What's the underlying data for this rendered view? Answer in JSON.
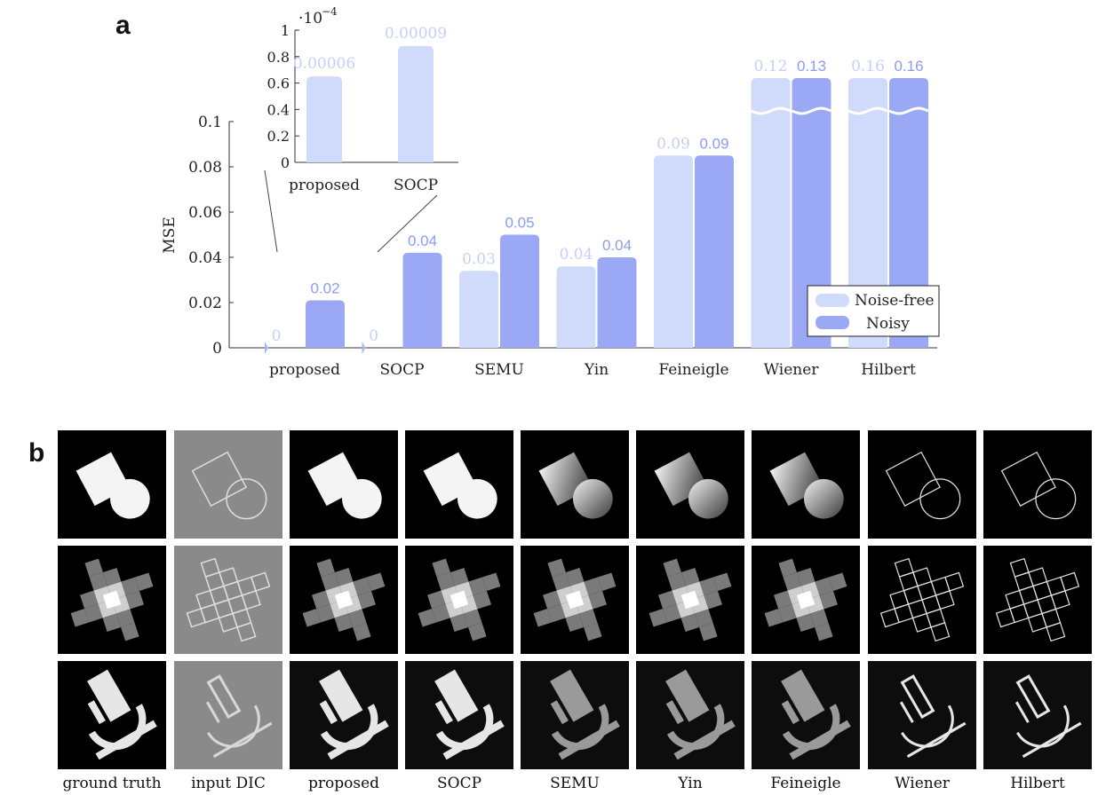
{
  "panel_a_label": "a",
  "panel_b_label": "b",
  "chart_data": [
    {
      "type": "bar",
      "categories": [
        "proposed",
        "SOCP",
        "SEMU",
        "Yin",
        "Feineigle",
        "Wiener",
        "Hilbert"
      ],
      "series": [
        {
          "name": "Noise-free",
          "values": [
            6e-05,
            9e-05,
            0.034,
            0.036,
            0.085,
            0.12,
            0.16
          ],
          "labels": [
            "0",
            "0",
            "0.03",
            "0.04",
            "0.09",
            "0.12",
            "0.16"
          ]
        },
        {
          "name": "Noisy",
          "values": [
            0.021,
            0.042,
            0.05,
            0.04,
            0.085,
            0.13,
            0.16
          ],
          "labels": [
            "0.02",
            "0.04",
            "0.05",
            "0.04",
            "0.09",
            "0.13",
            "0.16"
          ]
        }
      ],
      "ylabel": "MSE",
      "xlabel": "",
      "ylim": [
        0,
        0.1
      ],
      "yticks": [
        "0",
        "0.02",
        "0.04",
        "0.06",
        "0.08",
        "0.1"
      ],
      "axis_break": "Wiener and Hilbert bars exceed the axis (broken bars)",
      "legend_position": "bottom-right",
      "colors": {
        "noise_free": "#d0dbfb",
        "noisy": "#9aa8f5",
        "label_noise_free": "#c5d0f7",
        "label_noisy": "#8d9cf0"
      }
    },
    {
      "type": "bar",
      "note": "inset",
      "categories": [
        "proposed",
        "SOCP"
      ],
      "values": [
        6e-05,
        9e-05
      ],
      "labels": [
        "0.00006",
        "0.00009"
      ],
      "scale_label": "·10",
      "scale_exponent": "−4",
      "ylim": [
        0,
        1
      ],
      "yticks": [
        "0",
        "0.2",
        "0.4",
        "0.6",
        "0.8",
        "1"
      ],
      "display_values_scaled": [
        0.65,
        0.88
      ]
    }
  ],
  "panel_b": {
    "columns": [
      "ground truth",
      "input DIC",
      "proposed",
      "SOCP",
      "SEMU",
      "Yin",
      "Feineigle",
      "Wiener",
      "Hilbert"
    ],
    "rows": [
      "shapes",
      "grid",
      "microscope"
    ]
  }
}
